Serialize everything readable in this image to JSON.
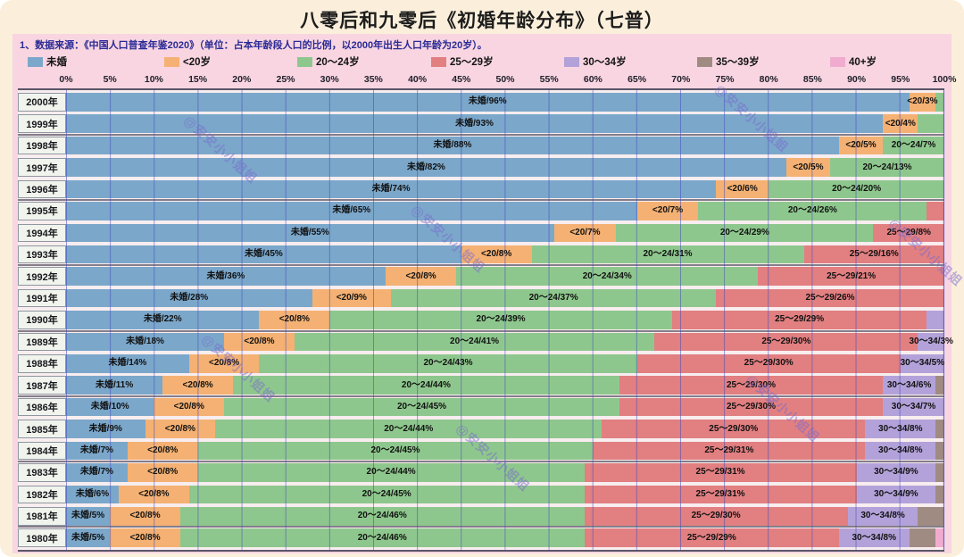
{
  "title": "八零后和九零后《初婚年龄分布》（七普）",
  "note": "1、数据来源：《中国人口普查年鉴2020》（单位：占本年龄段人口的比例，以2000年出生人口年龄为20岁）。",
  "watermark": "@安安小小姐姐",
  "colors": {
    "unmarried": "#7BA7CA",
    "lt20": "#F4B173",
    "a20_24": "#8EC78D",
    "a25_29": "#E17F81",
    "a30_34": "#B3A2D9",
    "a35_39": "#A08B83",
    "a40plus": "#F1ABCF",
    "panel": "#F8D5E1",
    "page": "#FBEFDB",
    "labelCell": "#F0F4ED"
  },
  "legend": [
    {
      "key": "unmarried",
      "label": "未婚"
    },
    {
      "key": "lt20",
      "label": "<20岁"
    },
    {
      "key": "a20_24",
      "label": "20～24岁"
    },
    {
      "key": "a25_29",
      "label": "25～29岁"
    },
    {
      "key": "a30_34",
      "label": "30～34岁"
    },
    {
      "key": "a35_39",
      "label": "35～39岁"
    },
    {
      "key": "a40plus",
      "label": "40+岁"
    }
  ],
  "axis_ticks": [
    "0%",
    "5%",
    "10%",
    "15%",
    "20%",
    "25%",
    "30%",
    "35%",
    "40%",
    "45%",
    "50%",
    "55%",
    "60%",
    "65%",
    "70%",
    "75%",
    "80%",
    "85%",
    "90%",
    "95%",
    "100%"
  ],
  "chart_data": {
    "type": "bar",
    "stacked": true,
    "orientation": "horizontal",
    "unit": "percent of birth-year cohort",
    "xlim": [
      0,
      100
    ],
    "grid": true,
    "legend_position": "top",
    "categories": [
      "2000年",
      "1999年",
      "1998年",
      "1997年",
      "1996年",
      "1995年",
      "1994年",
      "1993年",
      "1992年",
      "1991年",
      "1990年",
      "1989年",
      "1988年",
      "1987年",
      "1986年",
      "1985年",
      "1984年",
      "1983年",
      "1982年",
      "1981年",
      "1980年"
    ],
    "series_names": [
      "未婚",
      "<20岁",
      "20～24岁",
      "25～29岁",
      "30～34岁",
      "35～39岁",
      "40+岁"
    ],
    "rows": [
      {
        "year": "2000年",
        "segments": [
          {
            "k": "unmarried",
            "v": 96,
            "label": "未婚/96%"
          },
          {
            "k": "lt20",
            "v": 3,
            "label": "<20/3%"
          },
          {
            "k": "a20_24",
            "v": 1,
            "label": ""
          }
        ]
      },
      {
        "year": "1999年",
        "segments": [
          {
            "k": "unmarried",
            "v": 93,
            "label": "未婚/93%"
          },
          {
            "k": "lt20",
            "v": 4,
            "label": "<20/4%"
          },
          {
            "k": "a20_24",
            "v": 3,
            "label": ""
          }
        ]
      },
      {
        "year": "1998年",
        "segments": [
          {
            "k": "unmarried",
            "v": 88,
            "label": "未婚/88%"
          },
          {
            "k": "lt20",
            "v": 5,
            "label": "<20/5%"
          },
          {
            "k": "a20_24",
            "v": 7,
            "label": "20～24/7%"
          }
        ]
      },
      {
        "year": "1997年",
        "segments": [
          {
            "k": "unmarried",
            "v": 82,
            "label": "未婚/82%"
          },
          {
            "k": "lt20",
            "v": 5,
            "label": "<20/5%"
          },
          {
            "k": "a20_24",
            "v": 13,
            "label": "20～24/13%"
          }
        ]
      },
      {
        "year": "1996年",
        "segments": [
          {
            "k": "unmarried",
            "v": 74,
            "label": "未婚/74%"
          },
          {
            "k": "lt20",
            "v": 6,
            "label": "<20/6%"
          },
          {
            "k": "a20_24",
            "v": 20,
            "label": "20～24/20%"
          }
        ]
      },
      {
        "year": "1995年",
        "segments": [
          {
            "k": "unmarried",
            "v": 65,
            "label": "未婚/65%"
          },
          {
            "k": "lt20",
            "v": 7,
            "label": "<20/7%"
          },
          {
            "k": "a20_24",
            "v": 26,
            "label": "20～24/26%"
          },
          {
            "k": "a25_29",
            "v": 2,
            "label": ""
          }
        ]
      },
      {
        "year": "1994年",
        "segments": [
          {
            "k": "unmarried",
            "v": 55,
            "label": "未婚/55%"
          },
          {
            "k": "lt20",
            "v": 7,
            "label": "<20/7%"
          },
          {
            "k": "a20_24",
            "v": 29,
            "label": "20～24/29%"
          },
          {
            "k": "a25_29",
            "v": 8,
            "label": "25～29/8%"
          }
        ]
      },
      {
        "year": "1993年",
        "segments": [
          {
            "k": "unmarried",
            "v": 45,
            "label": "未婚/45%"
          },
          {
            "k": "lt20",
            "v": 8,
            "label": "<20/8%"
          },
          {
            "k": "a20_24",
            "v": 31,
            "label": "20～24/31%"
          },
          {
            "k": "a25_29",
            "v": 16,
            "label": "25～29/16%"
          }
        ]
      },
      {
        "year": "1992年",
        "segments": [
          {
            "k": "unmarried",
            "v": 36,
            "label": "未婚/36%"
          },
          {
            "k": "lt20",
            "v": 8,
            "label": "<20/8%"
          },
          {
            "k": "a20_24",
            "v": 34,
            "label": "20～24/34%"
          },
          {
            "k": "a25_29",
            "v": 21,
            "label": "25～29/21%"
          }
        ]
      },
      {
        "year": "1991年",
        "segments": [
          {
            "k": "unmarried",
            "v": 28,
            "label": "未婚/28%"
          },
          {
            "k": "lt20",
            "v": 9,
            "label": "<20/9%"
          },
          {
            "k": "a20_24",
            "v": 37,
            "label": "20～24/37%"
          },
          {
            "k": "a25_29",
            "v": 26,
            "label": "25～29/26%"
          }
        ]
      },
      {
        "year": "1990年",
        "segments": [
          {
            "k": "unmarried",
            "v": 22,
            "label": "未婚/22%"
          },
          {
            "k": "lt20",
            "v": 8,
            "label": "<20/8%"
          },
          {
            "k": "a20_24",
            "v": 39,
            "label": "20～24/39%"
          },
          {
            "k": "a25_29",
            "v": 29,
            "label": "25～29/29%"
          },
          {
            "k": "a30_34",
            "v": 2,
            "label": ""
          }
        ]
      },
      {
        "year": "1989年",
        "segments": [
          {
            "k": "unmarried",
            "v": 18,
            "label": "未婚/18%"
          },
          {
            "k": "lt20",
            "v": 8,
            "label": "<20/8%"
          },
          {
            "k": "a20_24",
            "v": 41,
            "label": "20～24/41%"
          },
          {
            "k": "a25_29",
            "v": 30,
            "label": "25～29/30%"
          },
          {
            "k": "a30_34",
            "v": 3,
            "label": "30～34/3%"
          }
        ]
      },
      {
        "year": "1988年",
        "segments": [
          {
            "k": "unmarried",
            "v": 14,
            "label": "未婚/14%"
          },
          {
            "k": "lt20",
            "v": 8,
            "label": "<20/8%"
          },
          {
            "k": "a20_24",
            "v": 43,
            "label": "20～24/43%"
          },
          {
            "k": "a25_29",
            "v": 30,
            "label": "25～29/30%"
          },
          {
            "k": "a30_34",
            "v": 5,
            "label": "30～34/5%"
          }
        ]
      },
      {
        "year": "1987年",
        "segments": [
          {
            "k": "unmarried",
            "v": 11,
            "label": "未婚/11%"
          },
          {
            "k": "lt20",
            "v": 8,
            "label": "<20/8%"
          },
          {
            "k": "a20_24",
            "v": 44,
            "label": "20～24/44%"
          },
          {
            "k": "a25_29",
            "v": 30,
            "label": "25～29/30%"
          },
          {
            "k": "a30_34",
            "v": 6,
            "label": "30～34/6%"
          },
          {
            "k": "a35_39",
            "v": 1,
            "label": ""
          }
        ]
      },
      {
        "year": "1986年",
        "segments": [
          {
            "k": "unmarried",
            "v": 10,
            "label": "未婚/10%"
          },
          {
            "k": "lt20",
            "v": 8,
            "label": "<20/8%"
          },
          {
            "k": "a20_24",
            "v": 45,
            "label": "20～24/45%"
          },
          {
            "k": "a25_29",
            "v": 30,
            "label": "25～29/30%"
          },
          {
            "k": "a30_34",
            "v": 7,
            "label": "30～34/7%"
          }
        ]
      },
      {
        "year": "1985年",
        "segments": [
          {
            "k": "unmarried",
            "v": 9,
            "label": "未婚/9%"
          },
          {
            "k": "lt20",
            "v": 8,
            "label": "<20/8%"
          },
          {
            "k": "a20_24",
            "v": 44,
            "label": "20～24/44%"
          },
          {
            "k": "a25_29",
            "v": 30,
            "label": "25～29/30%"
          },
          {
            "k": "a30_34",
            "v": 8,
            "label": "30～34/8%"
          },
          {
            "k": "a35_39",
            "v": 1,
            "label": ""
          }
        ]
      },
      {
        "year": "1984年",
        "segments": [
          {
            "k": "unmarried",
            "v": 7,
            "label": "未婚/7%"
          },
          {
            "k": "lt20",
            "v": 8,
            "label": "<20/8%"
          },
          {
            "k": "a20_24",
            "v": 45,
            "label": "20～24/45%"
          },
          {
            "k": "a25_29",
            "v": 31,
            "label": "25～29/31%"
          },
          {
            "k": "a30_34",
            "v": 8,
            "label": "30～34/8%"
          },
          {
            "k": "a35_39",
            "v": 1,
            "label": ""
          }
        ]
      },
      {
        "year": "1983年",
        "segments": [
          {
            "k": "unmarried",
            "v": 7,
            "label": "未婚/7%"
          },
          {
            "k": "lt20",
            "v": 8,
            "label": "<20/8%"
          },
          {
            "k": "a20_24",
            "v": 44,
            "label": "20～24/44%"
          },
          {
            "k": "a25_29",
            "v": 31,
            "label": "25～29/31%"
          },
          {
            "k": "a30_34",
            "v": 9,
            "label": "30～34/9%"
          },
          {
            "k": "a35_39",
            "v": 1,
            "label": ""
          }
        ]
      },
      {
        "year": "1982年",
        "segments": [
          {
            "k": "unmarried",
            "v": 6,
            "label": "未婚/6%"
          },
          {
            "k": "lt20",
            "v": 8,
            "label": "<20/8%"
          },
          {
            "k": "a20_24",
            "v": 45,
            "label": "20～24/45%"
          },
          {
            "k": "a25_29",
            "v": 31,
            "label": "25～29/31%"
          },
          {
            "k": "a30_34",
            "v": 9,
            "label": "30～34/9%"
          },
          {
            "k": "a35_39",
            "v": 1,
            "label": ""
          }
        ]
      },
      {
        "year": "1981年",
        "segments": [
          {
            "k": "unmarried",
            "v": 5,
            "label": "未婚/5%"
          },
          {
            "k": "lt20",
            "v": 8,
            "label": "<20/8%"
          },
          {
            "k": "a20_24",
            "v": 46,
            "label": "20～24/46%"
          },
          {
            "k": "a25_29",
            "v": 30,
            "label": "25～29/30%"
          },
          {
            "k": "a30_34",
            "v": 8,
            "label": "30～34/8%"
          },
          {
            "k": "a35_39",
            "v": 3,
            "label": ""
          }
        ]
      },
      {
        "year": "1980年",
        "segments": [
          {
            "k": "unmarried",
            "v": 5,
            "label": "未婚/5%"
          },
          {
            "k": "lt20",
            "v": 8,
            "label": "<20/8%"
          },
          {
            "k": "a20_24",
            "v": 46,
            "label": "20～24/46%"
          },
          {
            "k": "a25_29",
            "v": 29,
            "label": "25～29/29%"
          },
          {
            "k": "a30_34",
            "v": 8,
            "label": "30～34/8%"
          },
          {
            "k": "a35_39",
            "v": 3,
            "label": ""
          },
          {
            "k": "a40plus",
            "v": 1,
            "label": ""
          }
        ]
      }
    ]
  }
}
